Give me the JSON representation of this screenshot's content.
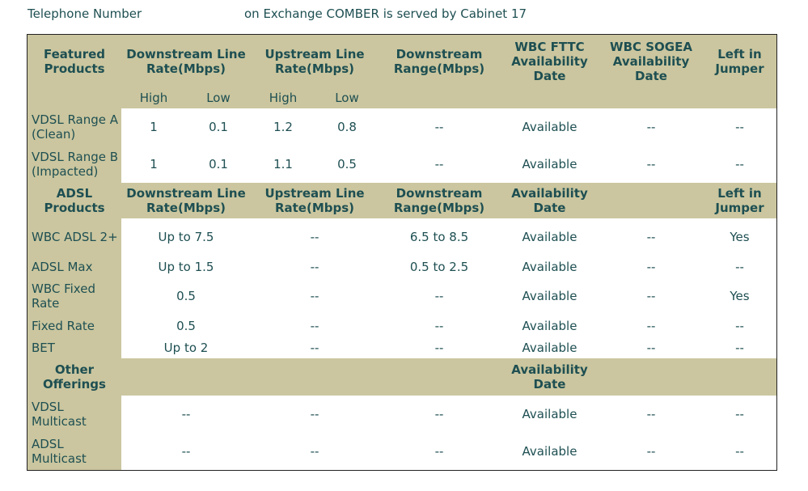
{
  "header": {
    "telephone_label": "Telephone Number",
    "exchange_text": "on Exchange COMBER is served by Cabinet 17"
  },
  "featured": {
    "headers": [
      "Featured Products",
      "Downstream Line Rate(Mbps)",
      "Upstream Line Rate(Mbps)",
      "Downstream Range(Mbps)",
      "WBC FTTC Availability Date",
      "WBC SOGEA Availability Date",
      "Left in Jumper"
    ],
    "sub_headers": [
      "High",
      "Low",
      "High",
      "Low"
    ],
    "rows": [
      {
        "name": "VDSL Range A (Clean)",
        "down_high": "1",
        "down_low": "0.1",
        "up_high": "1.2",
        "up_low": "0.8",
        "range": "--",
        "fttc": "Available",
        "sogea": "--",
        "jumper": "--"
      },
      {
        "name": "VDSL Range B (Impacted)",
        "down_high": "1",
        "down_low": "0.1",
        "up_high": "1.1",
        "up_low": "0.5",
        "range": "--",
        "fttc": "Available",
        "sogea": "--",
        "jumper": "--"
      }
    ]
  },
  "adsl": {
    "headers": [
      "ADSL Products",
      "Downstream Line Rate(Mbps)",
      "Upstream Line Rate(Mbps)",
      "Downstream Range(Mbps)",
      "Availability Date",
      "",
      "Left in Jumper"
    ],
    "rows": [
      {
        "name": "WBC ADSL 2+",
        "down": "Up to 7.5",
        "up": "--",
        "range": "6.5 to 8.5",
        "avail": "Available",
        "extra": "--",
        "jumper": "Yes"
      },
      {
        "name": "ADSL Max",
        "down": "Up to 1.5",
        "up": "--",
        "range": "0.5 to 2.5",
        "avail": "Available",
        "extra": "--",
        "jumper": "--"
      },
      {
        "name": "WBC Fixed Rate",
        "down": "0.5",
        "up": "--",
        "range": "--",
        "avail": "Available",
        "extra": "--",
        "jumper": "Yes"
      },
      {
        "name": "Fixed Rate",
        "down": "0.5",
        "up": "--",
        "range": "--",
        "avail": "Available",
        "extra": "--",
        "jumper": "--"
      },
      {
        "name": "BET",
        "down": "Up to 2",
        "up": "--",
        "range": "--",
        "avail": "Available",
        "extra": "--",
        "jumper": "--"
      }
    ]
  },
  "other": {
    "headers": [
      "Other Offerings",
      "Availability Date"
    ],
    "rows": [
      {
        "name": "VDSL Multicast",
        "down": "--",
        "up": "--",
        "range": "--",
        "avail": "Available",
        "extra": "--",
        "jumper": "--"
      },
      {
        "name": "ADSL Multicast",
        "down": "--",
        "up": "--",
        "range": "--",
        "avail": "Available",
        "extra": "--",
        "jumper": "--"
      }
    ]
  }
}
